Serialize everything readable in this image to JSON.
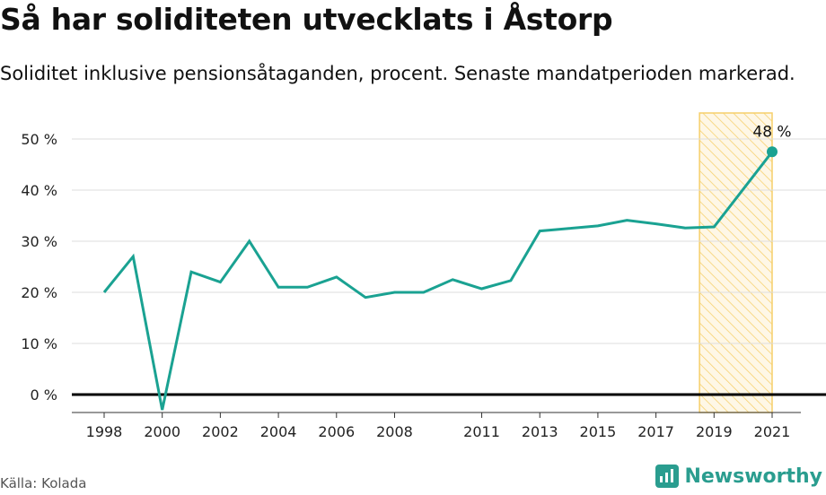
{
  "header": {
    "title": "Så har soliditeten utvecklats i Åstorp",
    "subtitle": "Soliditet inklusive pensionsåtaganden, procent. Senaste mandatperioden markerad."
  },
  "footer": {
    "source": "Källa: Kolada",
    "brand": "Newsworthy"
  },
  "colors": {
    "line": "#1aa292",
    "highlight_fill": "#fde9b8",
    "highlight_stroke": "#f6cf6a",
    "grid": "#dddddd",
    "zero_line": "#000000"
  },
  "chart_data": {
    "type": "line",
    "title": "Så har soliditeten utvecklats i Åstorp",
    "xlabel": "",
    "ylabel": "",
    "ylim": [
      -3,
      55
    ],
    "yticks": [
      0,
      10,
      20,
      30,
      40,
      50
    ],
    "ytick_labels": [
      "0 %",
      "10 %",
      "20 %",
      "30 %",
      "40 %",
      "50 %"
    ],
    "xlim": [
      1997.0,
      2022.0
    ],
    "xticks": [
      1998,
      2000,
      2002,
      2004,
      2006,
      2008,
      2011,
      2013,
      2015,
      2017,
      2019,
      2021
    ],
    "xtick_labels": [
      "1998",
      "2000",
      "2002",
      "2004",
      "2006",
      "2008",
      "2011",
      "2013",
      "2015",
      "2017",
      "2019",
      "2021"
    ],
    "series": [
      {
        "name": "Soliditet",
        "x": [
          1998,
          1999,
          2000,
          2001,
          2002,
          2003,
          2004,
          2005,
          2006,
          2007,
          2008,
          2009,
          2010,
          2011,
          2012,
          2013,
          2014,
          2015,
          2016,
          2017,
          2018,
          2019,
          2021
        ],
        "values": [
          20,
          27,
          -3,
          24,
          22,
          30,
          21,
          21,
          23,
          19,
          20,
          20,
          22.5,
          20.7,
          22.3,
          32,
          32.5,
          33,
          34.1,
          33.4,
          32.6,
          32.8,
          47.5
        ]
      }
    ],
    "highlight": {
      "x_from": 2018.5,
      "x_to": 2021.0,
      "label": "Senaste mandatperioden"
    },
    "annotations": [
      {
        "x": 2021,
        "y": 47.5,
        "text": "48 %"
      }
    ]
  }
}
